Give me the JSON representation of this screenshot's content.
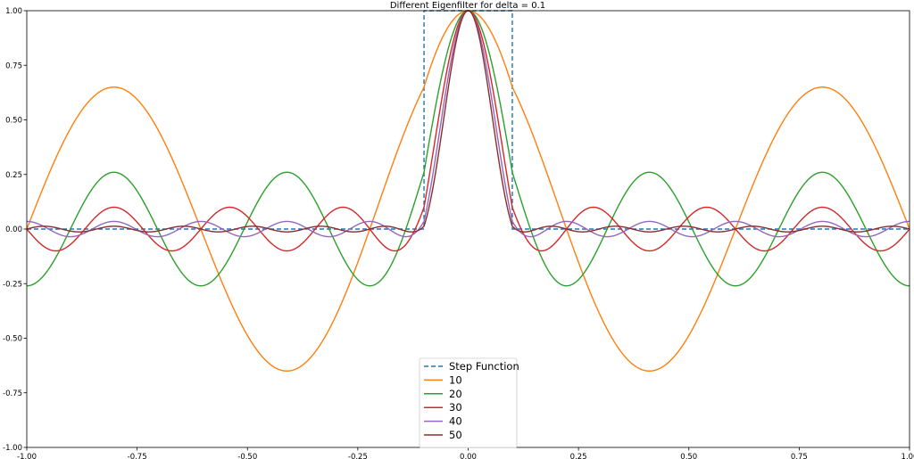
{
  "chart_data": {
    "type": "line",
    "title": "Different Eigenfilter for delta = 0.1",
    "xlabel": "",
    "ylabel": "",
    "xlim": [
      -1.0,
      1.0
    ],
    "ylim": [
      -1.0,
      1.0
    ],
    "x_ticks": [
      "-1.00",
      "-0.75",
      "-0.50",
      "-0.25",
      "0.00",
      "0.25",
      "0.50",
      "0.75",
      "1.00"
    ],
    "y_ticks": [
      "-1.00",
      "-0.75",
      "-0.50",
      "-0.25",
      "0.00",
      "0.25",
      "0.50",
      "0.75",
      "1.00"
    ],
    "grid": false,
    "legend_position": "bottom-center",
    "series": [
      {
        "name": "Step Function",
        "color": "#1f77b4",
        "dashed": true,
        "delta": 0.1,
        "points": [
          [
            -1.0,
            0.0
          ],
          [
            -0.1,
            0.0
          ],
          [
            -0.1,
            1.0
          ],
          [
            0.1,
            1.0
          ],
          [
            0.1,
            0.0
          ],
          [
            1.0,
            0.0
          ]
        ]
      },
      {
        "name": "10",
        "color": "#ff7f0e",
        "order": 10,
        "ripple": 0.65
      },
      {
        "name": "20",
        "color": "#2ca02c",
        "order": 20,
        "ripple": 0.26
      },
      {
        "name": "30",
        "color": "#d62728",
        "order": 30,
        "ripple": 0.1
      },
      {
        "name": "40",
        "color": "#9467bd",
        "order": 40,
        "ripple": 0.035
      },
      {
        "name": "50",
        "color": "#8c2d2d",
        "order": 50,
        "ripple": 0.013
      }
    ]
  }
}
